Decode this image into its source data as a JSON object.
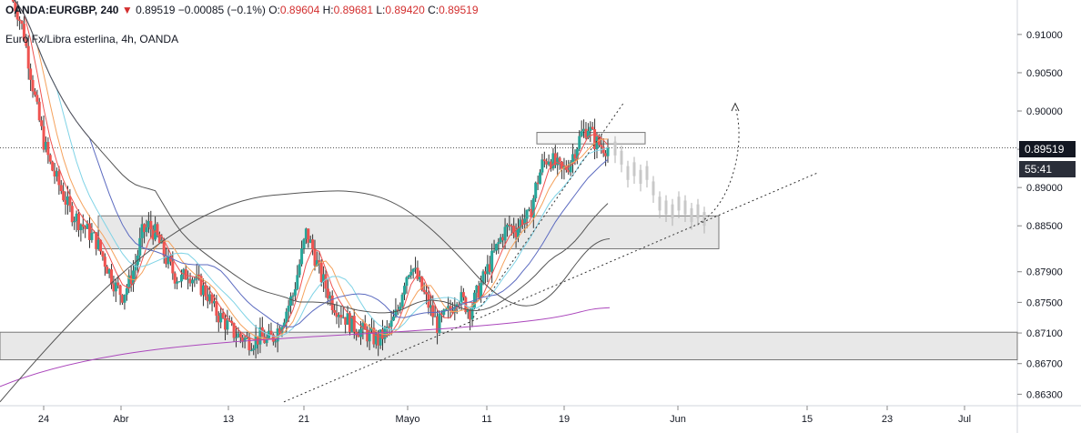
{
  "header": {
    "symbol": "OANDA:EURGBP, 240",
    "last": "0.89519",
    "arrow": "▼",
    "change": "−0.00085 (−0.1%)",
    "o_label": "O:",
    "o_value": "0.89604",
    "h_label": "H:",
    "h_value": "0.89681",
    "l_label": "L:",
    "l_value": "0.89420",
    "c_label": "C:",
    "c_value": "0.89519"
  },
  "subtitle": "Euro Fx/Libra esterlina, 4h, OANDA",
  "price_label": "0.89519",
  "countdown": "55:41",
  "colors": {
    "up": "#26a69a",
    "down": "#ef5350",
    "zone_fill": "#e0e0e0",
    "ma_red": "#ef5350",
    "ma_orange": "#f5a25d",
    "ma_cyan": "#7fd3e6",
    "ma_blue": "#5c6bc0",
    "ma_black": "#555555",
    "ma_purple": "#ab47bc"
  },
  "chart_data": {
    "type": "candlestick",
    "ylim": [
      0.8615,
      0.9145
    ],
    "y_ticks": [
      "0.91000",
      "0.90500",
      "0.90000",
      "0.89500",
      "0.89000",
      "0.88500",
      "0.87900",
      "0.87500",
      "0.87100",
      "0.86700",
      "0.86300"
    ],
    "x_ticks": [
      "24",
      "Abr",
      "13",
      "21",
      "Mayo",
      "11",
      "19",
      "Jun",
      "15",
      "23",
      "Jul"
    ],
    "last_price": 0.89519,
    "zones": [
      {
        "from": 0.8863,
        "to": 0.882
      },
      {
        "from": 0.8711,
        "to": 0.8675
      },
      {
        "from": 0.8972,
        "to": 0.8957
      }
    ],
    "price_path": [
      [
        0.915,
        0.913,
        0.91,
        0.905,
        0.9,
        0.896,
        0.893,
        0.891,
        0.889,
        0.887,
        0.886,
        0.885,
        0.884,
        0.883,
        0.881,
        0.879,
        0.877,
        0.876,
        0.8775,
        0.88,
        0.884,
        0.885,
        0.884,
        0.882,
        0.88,
        0.8785,
        0.878,
        0.879,
        0.878,
        0.877,
        0.876,
        0.874,
        0.873,
        0.872,
        0.871,
        0.8705,
        0.87,
        0.87,
        0.8705,
        0.87,
        0.8705,
        0.872,
        0.874,
        0.876,
        0.88,
        0.884,
        0.882,
        0.879,
        0.877,
        0.875,
        0.874,
        0.873,
        0.872,
        0.8715,
        0.871,
        0.8705,
        0.87,
        0.871,
        0.872,
        0.874,
        0.878,
        0.88,
        0.878,
        0.876,
        0.874,
        0.872,
        0.873,
        0.874,
        0.876,
        0.875,
        0.874,
        0.876,
        0.878,
        0.88,
        0.882,
        0.884,
        0.885,
        0.8845,
        0.886,
        0.886,
        0.89,
        0.893,
        0.894,
        0.893,
        0.892,
        0.893,
        0.895,
        0.897,
        0.898,
        0.896,
        0.8955,
        0.8952
      ]
    ]
  }
}
